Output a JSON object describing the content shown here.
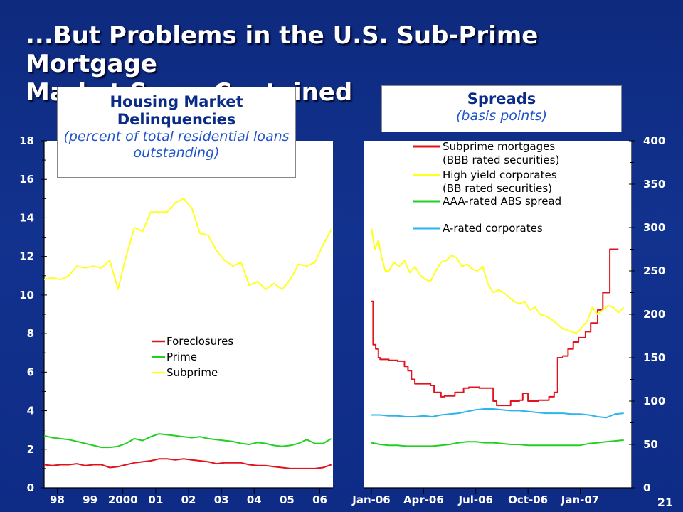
{
  "slide": {
    "title_line1": "...But Problems in the U.S. Sub-Prime Mortgage",
    "title_line2": "Market Seem Contained",
    "page_number": "21"
  },
  "colors": {
    "red": "#e0141e",
    "green": "#22d022",
    "yellow": "#ffff1e",
    "blue": "#2ab4f0",
    "axis": "#000000"
  },
  "chart_data": [
    {
      "type": "line",
      "title": "Housing Market Delinquencies",
      "subtitle": "(percent of total residential loans outstanding)",
      "ylim": [
        0,
        18
      ],
      "yticks": [
        0,
        2,
        4,
        6,
        8,
        10,
        12,
        14,
        16,
        18
      ],
      "xticks": [
        "98",
        "99",
        "2000",
        "01",
        "02",
        "03",
        "04",
        "05",
        "06"
      ],
      "xtick_positions": [
        1998,
        1999,
        2000,
        2001,
        2002,
        2003,
        2004,
        2005,
        2006
      ],
      "xlim": [
        1997.6,
        2006.4
      ],
      "legend": "center",
      "series": [
        {
          "name": "Foreclosures",
          "color": "red",
          "x": [
            1997.6,
            1997.85,
            1998.1,
            1998.35,
            1998.6,
            1998.85,
            1999.1,
            1999.35,
            1999.6,
            1999.85,
            2000.1,
            2000.35,
            2000.6,
            2000.85,
            2001.1,
            2001.35,
            2001.6,
            2001.85,
            2002.1,
            2002.35,
            2002.6,
            2002.85,
            2003.1,
            2003.35,
            2003.6,
            2003.85,
            2004.1,
            2004.35,
            2004.6,
            2004.85,
            2005.1,
            2005.35,
            2005.6,
            2005.85,
            2006.1,
            2006.35
          ],
          "y": [
            1.2,
            1.15,
            1.2,
            1.2,
            1.25,
            1.15,
            1.2,
            1.2,
            1.05,
            1.1,
            1.2,
            1.3,
            1.35,
            1.4,
            1.5,
            1.5,
            1.45,
            1.5,
            1.45,
            1.4,
            1.35,
            1.25,
            1.3,
            1.3,
            1.3,
            1.2,
            1.15,
            1.15,
            1.1,
            1.05,
            1.0,
            1.0,
            1.0,
            1.0,
            1.05,
            1.2
          ]
        },
        {
          "name": "Prime",
          "color": "green",
          "x": [
            1997.6,
            1997.85,
            1998.1,
            1998.35,
            1998.6,
            1998.85,
            1999.1,
            1999.35,
            1999.6,
            1999.85,
            2000.1,
            2000.35,
            2000.6,
            2000.85,
            2001.1,
            2001.35,
            2001.6,
            2001.85,
            2002.1,
            2002.35,
            2002.6,
            2002.85,
            2003.1,
            2003.35,
            2003.6,
            2003.85,
            2004.1,
            2004.35,
            2004.6,
            2004.85,
            2005.1,
            2005.35,
            2005.6,
            2005.85,
            2006.1,
            2006.35
          ],
          "y": [
            2.7,
            2.6,
            2.55,
            2.5,
            2.4,
            2.3,
            2.2,
            2.1,
            2.1,
            2.15,
            2.3,
            2.55,
            2.45,
            2.65,
            2.8,
            2.75,
            2.7,
            2.65,
            2.6,
            2.65,
            2.55,
            2.5,
            2.45,
            2.4,
            2.3,
            2.25,
            2.35,
            2.3,
            2.2,
            2.15,
            2.2,
            2.3,
            2.5,
            2.3,
            2.3,
            2.55
          ]
        },
        {
          "name": "Subprime",
          "color": "yellow",
          "x": [
            1997.6,
            1997.85,
            1998.1,
            1998.35,
            1998.6,
            1998.85,
            1999.1,
            1999.35,
            1999.6,
            1999.85,
            2000.1,
            2000.35,
            2000.6,
            2000.85,
            2001.1,
            2001.35,
            2001.6,
            2001.85,
            2002.1,
            2002.35,
            2002.6,
            2002.85,
            2003.1,
            2003.35,
            2003.6,
            2003.85,
            2004.1,
            2004.35,
            2004.6,
            2004.85,
            2005.1,
            2005.35,
            2005.6,
            2005.85,
            2006.1,
            2006.35
          ],
          "y": [
            10.8,
            10.9,
            10.8,
            11.0,
            11.5,
            11.4,
            11.5,
            11.4,
            11.8,
            10.3,
            12.0,
            13.5,
            13.3,
            14.3,
            14.3,
            14.3,
            14.8,
            15.0,
            14.5,
            13.2,
            13.1,
            12.3,
            11.8,
            11.5,
            11.7,
            10.5,
            10.7,
            10.3,
            10.6,
            10.3,
            10.8,
            11.6,
            11.5,
            11.7,
            12.6,
            13.4
          ]
        }
      ]
    },
    {
      "type": "line",
      "title": "Spreads",
      "subtitle": "(basis points)",
      "ylim": [
        0,
        400
      ],
      "yticks": [
        0,
        50,
        100,
        150,
        200,
        250,
        300,
        350,
        400
      ],
      "y_axis_side": "right",
      "xticks": [
        "Jan-06",
        "Apr-06",
        "Jul-06",
        "Oct-06",
        "Jan-07"
      ],
      "xtick_positions": [
        0,
        3,
        6,
        9,
        12
      ],
      "xlim": [
        0,
        14.8
      ],
      "legend": "top",
      "series": [
        {
          "name": "Subprime mortgages (BBB rated securities)",
          "color": "red",
          "step": true,
          "x": [
            0,
            0.1,
            0.25,
            0.4,
            0.5,
            1.0,
            1.5,
            1.9,
            2.1,
            2.3,
            2.5,
            3.0,
            3.4,
            3.6,
            4.0,
            4.2,
            4.8,
            5.3,
            5.6,
            6.2,
            7.0,
            7.2,
            7.8,
            8.0,
            8.5,
            8.7,
            9.0,
            9.3,
            9.6,
            10.2,
            10.5,
            10.7,
            11.0,
            11.3,
            11.6,
            11.9,
            12.3,
            12.6,
            13.0,
            13.3,
            13.7,
            14.2
          ],
          "y": [
            215,
            165,
            160,
            150,
            148,
            147,
            146,
            140,
            135,
            125,
            120,
            120,
            118,
            110,
            105,
            106,
            110,
            115,
            116,
            115,
            100,
            95,
            95,
            100,
            101,
            109,
            100,
            100,
            101,
            105,
            110,
            150,
            152,
            160,
            168,
            173,
            180,
            190,
            205,
            225,
            275,
            275
          ]
        },
        {
          "name": "High yield corporates (BB rated securities)",
          "color": "yellow",
          "x": [
            0,
            0.2,
            0.4,
            0.6,
            0.8,
            1.0,
            1.3,
            1.6,
            1.9,
            2.2,
            2.5,
            2.8,
            3.1,
            3.4,
            3.7,
            4.0,
            4.3,
            4.6,
            4.9,
            5.2,
            5.5,
            5.8,
            6.1,
            6.4,
            6.7,
            7.0,
            7.3,
            7.6,
            7.9,
            8.2,
            8.5,
            8.8,
            9.1,
            9.4,
            9.7,
            10.0,
            10.3,
            10.6,
            10.9,
            11.2,
            11.5,
            11.8,
            12.1,
            12.4,
            12.7,
            13.0,
            13.3,
            13.6,
            13.9,
            14.2,
            14.5
          ],
          "y": [
            300,
            275,
            285,
            265,
            250,
            250,
            260,
            255,
            262,
            248,
            255,
            245,
            240,
            238,
            250,
            260,
            262,
            268,
            265,
            255,
            258,
            252,
            250,
            255,
            235,
            225,
            228,
            225,
            220,
            215,
            212,
            215,
            205,
            208,
            200,
            198,
            195,
            190,
            185,
            182,
            180,
            178,
            185,
            192,
            208,
            200,
            205,
            210,
            208,
            202,
            208
          ]
        },
        {
          "name": "AAA-rated ABS spread",
          "color": "green",
          "x": [
            0,
            0.5,
            1.0,
            1.5,
            2.0,
            2.5,
            3.0,
            3.5,
            4.0,
            4.5,
            5.0,
            5.5,
            6.0,
            6.5,
            7.0,
            7.5,
            8.0,
            8.5,
            9.0,
            9.5,
            10.0,
            10.5,
            11.0,
            11.5,
            12.0,
            12.5,
            13.0,
            13.5,
            14.0,
            14.5
          ],
          "y": [
            52,
            50,
            49,
            49,
            48,
            48,
            48,
            48,
            49,
            50,
            52,
            53,
            53,
            52,
            52,
            51,
            50,
            50,
            49,
            49,
            49,
            49,
            49,
            49,
            49,
            51,
            52,
            53,
            54,
            55
          ]
        },
        {
          "name": "A-rated corporates",
          "color": "blue",
          "x": [
            0,
            0.5,
            1.0,
            1.5,
            2.0,
            2.5,
            3.0,
            3.5,
            4.0,
            4.5,
            5.0,
            5.5,
            6.0,
            6.5,
            7.0,
            7.5,
            8.0,
            8.5,
            9.0,
            9.5,
            10.0,
            10.5,
            11.0,
            11.5,
            12.0,
            12.5,
            13.0,
            13.5,
            14.0,
            14.5
          ],
          "y": [
            84,
            84,
            83,
            83,
            82,
            82,
            83,
            82,
            84,
            85,
            86,
            88,
            90,
            91,
            91,
            90,
            89,
            89,
            88,
            87,
            86,
            86,
            86,
            85,
            85,
            84,
            82,
            81,
            85,
            86
          ]
        }
      ]
    }
  ]
}
